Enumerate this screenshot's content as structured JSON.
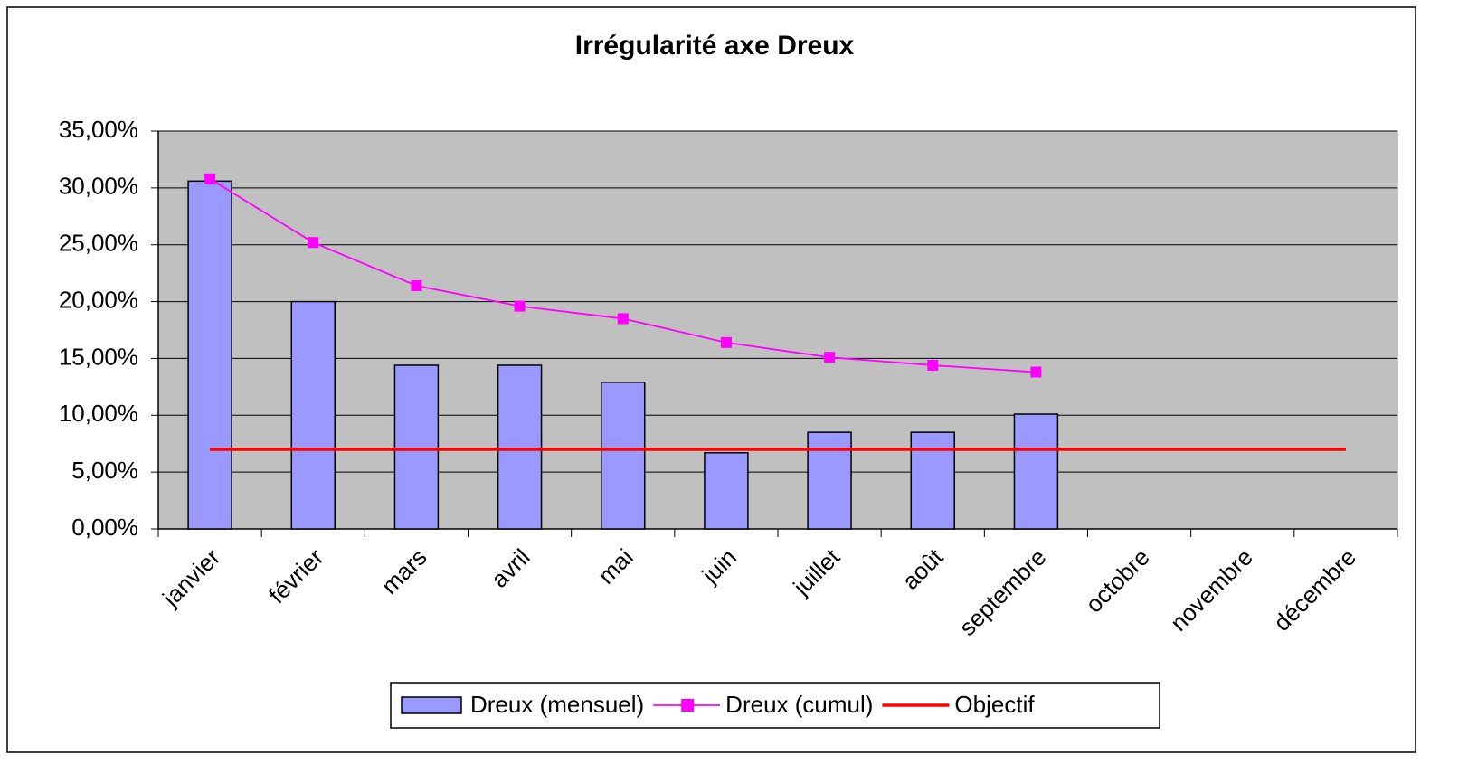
{
  "chart_data": {
    "type": "bar",
    "title": "Irrégularité axe Dreux",
    "categories": [
      "janvier",
      "février",
      "mars",
      "avril",
      "mai",
      "juin",
      "juillet",
      "août",
      "septembre",
      "octobre",
      "novembre",
      "décembre"
    ],
    "series": [
      {
        "name": "Dreux (mensuel)",
        "type": "bar",
        "color": "#9999ff",
        "values": [
          30.6,
          20.0,
          14.4,
          14.4,
          12.9,
          6.7,
          8.5,
          8.5,
          10.1,
          null,
          null,
          null
        ]
      },
      {
        "name": "Dreux (cumul)",
        "type": "line",
        "marker": "square",
        "color": "#ff00ff",
        "values": [
          30.8,
          25.2,
          21.4,
          19.6,
          18.5,
          16.4,
          15.1,
          14.4,
          13.8,
          null,
          null,
          null
        ]
      },
      {
        "name": "Objectif",
        "type": "line",
        "color": "#ff0000",
        "values": [
          7.0,
          7.0,
          7.0,
          7.0,
          7.0,
          7.0,
          7.0,
          7.0,
          7.0,
          7.0,
          7.0,
          7.0
        ]
      }
    ],
    "ylim": [
      0,
      35
    ],
    "yticks": [
      {
        "value": 0,
        "label": "0,00%"
      },
      {
        "value": 5,
        "label": "5,00%"
      },
      {
        "value": 10,
        "label": "10,00%"
      },
      {
        "value": 15,
        "label": "15,00%"
      },
      {
        "value": 20,
        "label": "20,00%"
      },
      {
        "value": 25,
        "label": "25,00%"
      },
      {
        "value": 30,
        "label": "30,00%"
      },
      {
        "value": 35,
        "label": "35,00%"
      }
    ],
    "grid": true,
    "legend": "bottom",
    "plot_background": "#c0c0c0"
  }
}
